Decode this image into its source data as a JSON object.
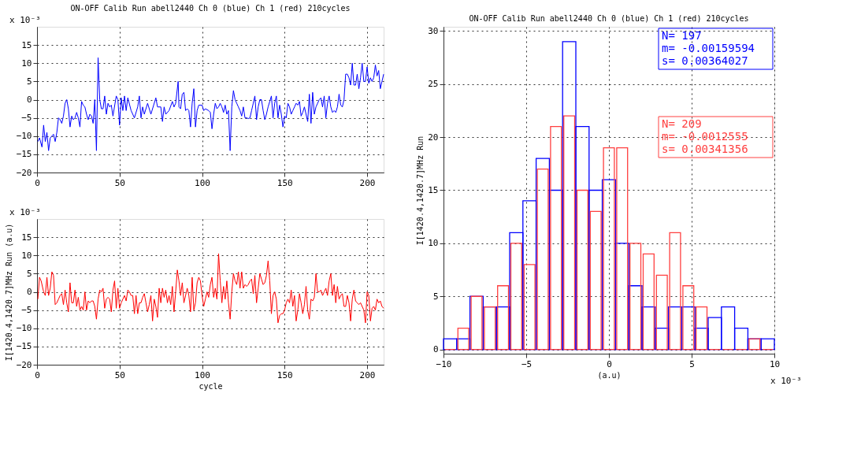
{
  "chart_data": [
    {
      "type": "line",
      "title": "ON-OFF Calib Run abell2440 Ch 0 (blue) Ch 1 (red) 210cycles",
      "annotations": [
        "x 10⁻³"
      ],
      "xlim": [
        0,
        210
      ],
      "xticks": [
        0,
        50,
        100,
        150,
        200
      ],
      "ylim": [
        -20,
        20
      ],
      "yticks": [
        -20,
        -15,
        -10,
        -5,
        0,
        5,
        10,
        15
      ],
      "grid": true,
      "series": [
        {
          "color": "#0000ff",
          "x": [
            0.5,
            1.5,
            3,
            4,
            5,
            6,
            7,
            8,
            10,
            11,
            12,
            13,
            14,
            15,
            16,
            17,
            18,
            19,
            20,
            21,
            22,
            23,
            24,
            25,
            26,
            27,
            28,
            29,
            30,
            31,
            32,
            33,
            34,
            35,
            36,
            37,
            38,
            39,
            40,
            41,
            42,
            43,
            44,
            45,
            46,
            48,
            49,
            50,
            51,
            52,
            53,
            54,
            55,
            57,
            59,
            61,
            62,
            63,
            64,
            65,
            67,
            69,
            72,
            73,
            75,
            76,
            77,
            78,
            80,
            82,
            83,
            84,
            85.5,
            86,
            87,
            88,
            89,
            90,
            91,
            92,
            93,
            94,
            95,
            96,
            97,
            98,
            100,
            101,
            102,
            104,
            105,
            106,
            107,
            108,
            109,
            110,
            111,
            112,
            113,
            114,
            115,
            116,
            117,
            118,
            119,
            120,
            121,
            122,
            123,
            124,
            125,
            126,
            127,
            128,
            129,
            130,
            131,
            132,
            133,
            134,
            135,
            136,
            137,
            138,
            139,
            140,
            141,
            142,
            143,
            144,
            145,
            146,
            147,
            148,
            149,
            150,
            151,
            152,
            153,
            154,
            155,
            156,
            157,
            158,
            159,
            160,
            161,
            162,
            163,
            164,
            165,
            166,
            167,
            168,
            169,
            170,
            171,
            172,
            173,
            174,
            175,
            176,
            177,
            178,
            179,
            180,
            181,
            182,
            183,
            184,
            185,
            186,
            187,
            188,
            189,
            190,
            191,
            192,
            193,
            194,
            195,
            196,
            197,
            198,
            199,
            200,
            201,
            202,
            203,
            204,
            205,
            206,
            207,
            208,
            209,
            210
          ],
          "values": [
            -11.5,
            -10.5,
            -13,
            -7,
            -11.5,
            -9,
            -14,
            -10.5,
            -9.5,
            -11.5,
            -9,
            -5,
            -5.5,
            -6.5,
            -4.5,
            -1,
            0,
            -2.5,
            -7.5,
            -4.5,
            -5.5,
            -5,
            -3.5,
            -5,
            -7.5,
            -0.5,
            -1.5,
            -2,
            -4,
            -5.5,
            -4,
            -4.5,
            -6.5,
            0,
            -14,
            11.5,
            0,
            -2.5,
            -2.5,
            1,
            -4,
            -1,
            -2,
            -1.5,
            -4.5,
            1,
            0,
            -7,
            0.5,
            -3,
            1,
            -3,
            0.5,
            -3,
            -5,
            -2,
            1,
            -5,
            -2,
            -4,
            -1,
            -4,
            0.5,
            -2,
            -2,
            -6,
            -2,
            -4,
            -3,
            -0.5,
            -2,
            -1,
            5,
            -2,
            -2.5,
            1.5,
            2,
            -3,
            -2.5,
            -3,
            -7.5,
            -1,
            3,
            -7.5,
            -3,
            -1.5,
            -1.5,
            -3,
            -2.5,
            -3,
            -3.5,
            -8,
            -4,
            -1,
            -2.5,
            -2,
            -1,
            -2,
            -3.5,
            -1.5,
            -4,
            -3,
            -14,
            -2,
            2.5,
            0,
            -1,
            -2,
            -3,
            -4.5,
            -2,
            -5,
            -5,
            -5.2,
            -5,
            -3,
            -1,
            1,
            -5.5,
            -2,
            0,
            0,
            -3,
            -5.5,
            -4,
            -2,
            -0.5,
            1,
            -5,
            -1,
            1,
            -5,
            -1.5,
            -4,
            -7.5,
            -4.5,
            -5,
            -1,
            -2,
            -4,
            -3,
            -2,
            -1,
            -1.5,
            -0.5,
            -4.5,
            -3.5,
            -2,
            -4,
            -6,
            1.5,
            -6.5,
            2,
            -4,
            -2,
            -1,
            0,
            0.5,
            -2,
            1,
            -5,
            -1,
            1,
            -2,
            -3.5,
            -3,
            -3.5,
            -2,
            1.5,
            -1.5,
            -2,
            0,
            7,
            7,
            6,
            4,
            10,
            4,
            4,
            7,
            3,
            6,
            10,
            5,
            5,
            9,
            4.5,
            6,
            5,
            6,
            9.5,
            6.5,
            8,
            3,
            5,
            7
          ]
        }
      ]
    },
    {
      "type": "line",
      "xlabel": "cycle",
      "ylabel": "I[1420.4,1420.7]MHz Run (a.u)",
      "annotations": [
        "x 10⁻³"
      ],
      "xlim": [
        0,
        210
      ],
      "xticks": [
        0,
        50,
        100,
        150,
        200
      ],
      "ylim": [
        -20,
        20
      ],
      "yticks": [
        -20,
        -15,
        -10,
        -5,
        0,
        5,
        10,
        15
      ],
      "grid": true,
      "series": [
        {
          "color": "#ff0000",
          "x": [
            0.5,
            1.5,
            2.5,
            4,
            5,
            6,
            7,
            8,
            9,
            10,
            11,
            12,
            13,
            14,
            15,
            16,
            17,
            18,
            19,
            20,
            21,
            22,
            23,
            24,
            25,
            26,
            27,
            28,
            29,
            30,
            31,
            32,
            33,
            34,
            35,
            36,
            37,
            38,
            39,
            40,
            41,
            42,
            43,
            44,
            45,
            46,
            47,
            48,
            49,
            50,
            51,
            52,
            53,
            54,
            55,
            56,
            57,
            58,
            59,
            60,
            61,
            62,
            63,
            64,
            65,
            66,
            67,
            68,
            69,
            70,
            71,
            72,
            73,
            74,
            75,
            76,
            77,
            78,
            79,
            80,
            81,
            82,
            83,
            84,
            85,
            86,
            87,
            88,
            89,
            90,
            91,
            92,
            93,
            94,
            95,
            96,
            97,
            98,
            99,
            100,
            101,
            102,
            103,
            104,
            105,
            106,
            107,
            108,
            109,
            110,
            111,
            112,
            113,
            114,
            115,
            116,
            117,
            118,
            119,
            120,
            121,
            122,
            123,
            124,
            125,
            126,
            127,
            128,
            129,
            130,
            131,
            132,
            133,
            134,
            135,
            136,
            137,
            138,
            139,
            140,
            141,
            142,
            143,
            144,
            145,
            146,
            147,
            148,
            149,
            150,
            151,
            152,
            153,
            154,
            155,
            156,
            157,
            158,
            159,
            160,
            161,
            162,
            163,
            164,
            165,
            166,
            167,
            168,
            169,
            170,
            171,
            172,
            173,
            174,
            175,
            176,
            177,
            178,
            179,
            180,
            181,
            182,
            183,
            184,
            185,
            186,
            187,
            188,
            189,
            190,
            191,
            192,
            193,
            194,
            195,
            196,
            197,
            198,
            199,
            200,
            201,
            202,
            203,
            204,
            205,
            206,
            207,
            208,
            209,
            210
          ],
          "values": [
            -2,
            4,
            3,
            0,
            -1,
            4,
            -1,
            1,
            5.5,
            4.5,
            -3.5,
            -3,
            -2,
            -1,
            -0.5,
            -3.5,
            0.5,
            -3,
            -5.5,
            2.5,
            -3,
            -3,
            0.5,
            -4,
            -1.5,
            -5,
            -4,
            -5,
            0,
            -5,
            -2.5,
            -3,
            -2.5,
            -2.5,
            -4,
            -7.5,
            -2,
            0.5,
            0,
            1,
            -4.5,
            -2,
            -1.5,
            -2,
            -5.5,
            0.5,
            3,
            -4.5,
            1,
            -4.5,
            -3,
            -2,
            -1,
            -2.5,
            0.5,
            0,
            -1,
            -1,
            -6,
            -1,
            -6,
            -3,
            -3,
            -1.5,
            -0.5,
            -3,
            -5.5,
            -3.5,
            -1,
            -8,
            -2,
            -4,
            -7,
            1,
            -3,
            1,
            -1.5,
            0.5,
            -3,
            -1,
            -3.5,
            1.5,
            -5.5,
            0,
            6,
            3,
            -1,
            2.5,
            -3,
            -1,
            1,
            -1,
            -5.5,
            4,
            -5,
            -3,
            2.5,
            4,
            3,
            -1,
            -4,
            -2,
            0,
            -1.5,
            2,
            4,
            -1.5,
            1,
            -2,
            10.5,
            3,
            -3,
            1.5,
            -2,
            3,
            -3,
            -7.5,
            0,
            5,
            3,
            2,
            5.5,
            1,
            5.5,
            1,
            2,
            1.5,
            2,
            3,
            3.5,
            -0.5,
            4.5,
            -3,
            1,
            5,
            3.5,
            2,
            2.5,
            4.5,
            8.5,
            3,
            -6,
            -1,
            0,
            -2,
            -8.5,
            -6.5,
            -6,
            -6,
            -5,
            -3,
            -2,
            -3,
            0.5,
            -4,
            -1,
            -8,
            -5,
            -0.5,
            -3,
            -6,
            -3.5,
            1.5,
            -5,
            -7.5,
            -2,
            -2.5,
            -1.5,
            5,
            0,
            0,
            0.5,
            -1,
            0,
            1,
            -1,
            3,
            5,
            -1,
            2,
            -3,
            1.5,
            -2,
            -1,
            -0.5,
            -4,
            -4,
            -1,
            -3,
            -8,
            -2,
            0.5,
            -2.5,
            -3,
            -3.5,
            -3,
            -4,
            -5,
            -8.5,
            0,
            -1,
            -8,
            -4.5,
            -4,
            -5,
            -2,
            -3,
            -2.5,
            -4,
            -4.5
          ]
        }
      ]
    },
    {
      "type": "histogram",
      "title": "ON-OFF Calib Run abell2440 Ch 0 (blue) Ch 1 (red) 210cycles",
      "xlabel": "(a.u)",
      "ylabel": "I[1420.4,1420.7]MHz Run",
      "annotations": [
        "x 10⁻³",
        "N= 197\nm= -0.00159594\ns= 0.00364027",
        "N= 209\nm= -0.0012555\ns= 0.00341356"
      ],
      "bins": [
        -10,
        -9.2,
        -8.4,
        -7.6,
        -6.8,
        -6,
        -5.2,
        -4.4,
        -3.6,
        -2.8,
        -2,
        -1.2,
        -0.4,
        0.4,
        1.2,
        2,
        2.8,
        3.6,
        4.4,
        5.2,
        6,
        6.8,
        7.6,
        8.4,
        9.2,
        10
      ],
      "xlim": [
        -10,
        10
      ],
      "xticks": [
        -10,
        -5,
        0,
        5,
        10
      ],
      "ylim": [
        -0.4,
        30.4
      ],
      "yticks": [
        0,
        5,
        10,
        15,
        20,
        25,
        30
      ],
      "grid": true,
      "series": [
        {
          "color": "#0000ff",
          "values": [
            1,
            1,
            5,
            4,
            4,
            11,
            14,
            18,
            15,
            29,
            21,
            15,
            16,
            10,
            6,
            4,
            2,
            4,
            4,
            2,
            3,
            4,
            2,
            1,
            1
          ]
        },
        {
          "color": "#ff4040",
          "values": [
            0,
            2,
            5,
            4,
            6,
            10,
            8,
            17,
            21,
            22,
            15,
            13,
            19,
            19,
            10,
            9,
            7,
            11,
            6,
            4,
            0,
            0,
            0,
            1,
            0
          ]
        }
      ]
    }
  ]
}
